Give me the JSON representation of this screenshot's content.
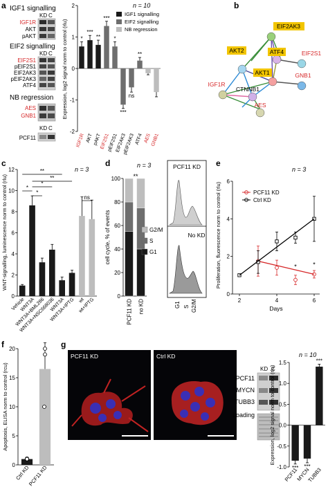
{
  "panel_letters": {
    "a": "a",
    "b": "b",
    "c": "c",
    "d": "d",
    "e": "e",
    "f": "f",
    "g": "g"
  },
  "blots": {
    "kd": "KD",
    "c": "C",
    "igf1_title": "IGF1 signalling",
    "igf1_labels": [
      "IGF1R",
      "AKT",
      "pAKT"
    ],
    "eif2_title": "EIF2 signalling",
    "eif2_labels": [
      "EIF2S1",
      "pEIF2S1",
      "EIF2AK3",
      "pEIF2AK3",
      "ATF4"
    ],
    "nb_title": "NB regression",
    "nb_labels": [
      "AES",
      "GNB1"
    ],
    "pcf11": "PCF11"
  },
  "colors": {
    "red": "#d62728",
    "dark": "#1a1a1a",
    "mid": "#6e6e6e",
    "light": "#bdbdbd",
    "node_yellow": "#f2c500"
  },
  "network": {
    "nodes": [
      "EIF2AK3",
      "AKT2",
      "ATF4",
      "EIF2S1",
      "AKT1",
      "GNB1",
      "IGF1R",
      "CTNNB1",
      "AES"
    ],
    "highlighted": [
      "EIF2AK3",
      "AKT2",
      "ATF4",
      "AKT1"
    ],
    "red_labels": [
      "EIF2S1",
      "GNB1",
      "IGF1R",
      "AES"
    ]
  },
  "chart_data": [
    {
      "panel": "a",
      "type": "bar",
      "n_label": "n = 10",
      "ylabel": "Expression, log2 signal norm to control (rlu)",
      "ylim": [
        -2,
        2
      ],
      "yticks": [
        2,
        1,
        0,
        -1,
        -2
      ],
      "categories": [
        "IGF1R",
        "AKT",
        "pAKT",
        "EIF2S1",
        "pEIF2S1",
        "EIF2AK3",
        "pEIF2AK3",
        "ATF4",
        "AES",
        "GNB1"
      ],
      "red_categories": [
        "IGF1R",
        "EIF2S1",
        "AES",
        "GNB1"
      ],
      "values": [
        0.7,
        0.9,
        0.75,
        1.35,
        0.7,
        -1.15,
        -0.6,
        0.25,
        -0.15,
        -0.75
      ],
      "errors": [
        0.15,
        0.15,
        0.15,
        0.15,
        0.15,
        0.12,
        0.15,
        0.1,
        0.05,
        0.15
      ],
      "groups": [
        "IGF1",
        "IGF1",
        "IGF1",
        "EIF2",
        "EIF2",
        "EIF2",
        "EIF2",
        "EIF2",
        "NB",
        "NB"
      ],
      "significance": [
        "*",
        "***",
        "**",
        "***",
        "*",
        "***",
        "ns",
        "**",
        "",
        ""
      ],
      "legend": [
        "IGF1 signalling",
        "EIF2 signalling",
        "NB regression"
      ]
    },
    {
      "panel": "c",
      "type": "bar",
      "n_label": "n = 3",
      "ylabel": "WNT-signalling, luminescence norm to control (rlu)",
      "ylim": [
        0,
        12
      ],
      "yticks": [
        0,
        2,
        4,
        6,
        8,
        10,
        12
      ],
      "categories": [
        "Vehicle",
        "WNT3A",
        "WNT3A+BML286",
        "WNT3A+NSC668036",
        "WNT3A",
        "WNT3A+IPTG",
        "wt",
        "wt+IPTG"
      ],
      "values": [
        1.0,
        8.6,
        3.2,
        4.4,
        1.5,
        2.2,
        7.6,
        7.3
      ],
      "errors": [
        0.1,
        0.9,
        0.4,
        0.5,
        0.3,
        0.25,
        1.8,
        1.8
      ],
      "comparisons": [
        "*",
        "*",
        "*",
        "**",
        "**",
        "ns"
      ]
    },
    {
      "panel": "d",
      "type": "bar",
      "n_label": "n = 3",
      "ylabel": "cell cycle, % of events",
      "ylim": [
        0,
        100
      ],
      "yticks": [
        0,
        20,
        40,
        60,
        80,
        100
      ],
      "categories": [
        "PCF11 KD",
        "no KD"
      ],
      "series": [
        {
          "name": "G1",
          "values": [
            55,
            40
          ]
        },
        {
          "name": "S",
          "values": [
            25,
            35
          ]
        },
        {
          "name": "G2/M",
          "values": [
            20,
            25
          ]
        }
      ],
      "significance": "**",
      "legend_order": [
        "G2/M",
        "S",
        "G1"
      ]
    },
    {
      "panel": "d-flow",
      "type": "area",
      "labels": [
        "PCF11 KD",
        "No KD"
      ],
      "xticks": [
        "G1",
        "S",
        "G2/M"
      ]
    },
    {
      "panel": "e",
      "type": "line",
      "n_label": "n = 3",
      "ylabel": "Proliferation, fluorescence norm to control (rlu)",
      "xlabel": "Days",
      "xlim": [
        2,
        6
      ],
      "ylim": [
        0,
        6
      ],
      "xticks": [
        2,
        4,
        6
      ],
      "yticks": [
        0,
        2,
        4,
        6
      ],
      "series": [
        {
          "name": "PCF11 KD",
          "x": [
            3,
            4,
            5,
            6
          ],
          "y": [
            1.75,
            1.4,
            0.75,
            1.05
          ],
          "err": [
            0.8,
            0.4,
            0.25,
            0.2
          ]
        },
        {
          "name": "Ctrl KD",
          "x": [
            2,
            3,
            4,
            5,
            6
          ],
          "y": [
            1.0,
            1.7,
            2.8,
            3.0,
            4.0
          ],
          "err": [
            0.05,
            0.6,
            0.5,
            0.3,
            1.2
          ]
        }
      ],
      "significance": [
        "*",
        "*"
      ]
    },
    {
      "panel": "f",
      "type": "bar",
      "ylabel": "Apoptosis, ELISA norm to control (rcu)",
      "ylim": [
        0,
        20
      ],
      "yticks": [
        0,
        5,
        10,
        15,
        20
      ],
      "categories": [
        "Ctrl KD",
        "PCF11 KD"
      ],
      "values": [
        1.0,
        16.5
      ],
      "errors": [
        0.3,
        4.5
      ]
    },
    {
      "panel": "g",
      "type": "bar",
      "n_label": "n = 10",
      "ylabel": "Expression, log2 signal norm to control (rlu)",
      "ylim": [
        -1,
        1.5
      ],
      "yticks": [
        1.5,
        1.0,
        0.5,
        0,
        -0.5,
        -1.0
      ],
      "categories": [
        "PCF11",
        "MYCN",
        "TUBB3"
      ],
      "values": [
        -0.85,
        -0.8,
        1.4
      ],
      "errors": [
        0.08,
        0.1,
        0.06
      ],
      "significance": [
        "***",
        "***",
        "***"
      ]
    }
  ],
  "panel_g": {
    "image_labels": [
      "PCF11 KD",
      "Ctrl KD"
    ],
    "blot_kd": "KD",
    "blot_c": "C",
    "blot_labels": [
      "PCF11",
      "MYCN",
      "TUBB3",
      "Loading"
    ]
  }
}
